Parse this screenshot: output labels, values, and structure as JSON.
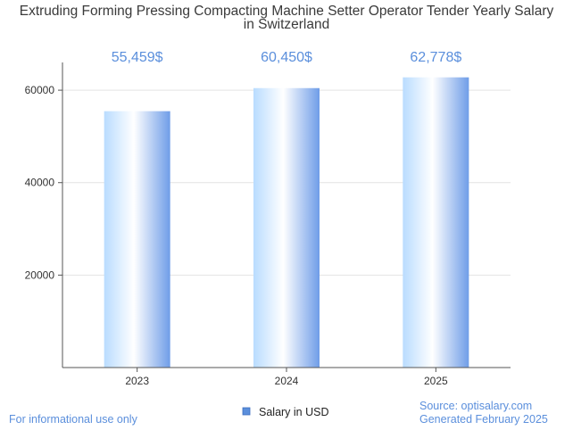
{
  "chart_data": {
    "type": "bar",
    "title_lines": [
      "Extruding Forming Pressing Compacting Machine Setter Operator Tender Yearly Salary",
      "in Switzerland"
    ],
    "categories": [
      "2023",
      "2024",
      "2025"
    ],
    "series": [
      {
        "name": "Salary in USD",
        "values": [
          55459,
          60450,
          62778
        ],
        "labels": [
          "55,459$",
          "60,450$",
          "62,778$"
        ]
      }
    ],
    "y_ticks": [
      "20000",
      "40000",
      "60000"
    ],
    "ylim": [
      0,
      66000
    ],
    "grid": true,
    "legend": "bottom-center",
    "colors": {
      "bar_dark": "#6f9de8",
      "bar_light": "#ffffff",
      "bar_pale": "#b9dcff",
      "label": "#5b8fdc"
    }
  },
  "footer": {
    "left": "For informational use only",
    "source": "Source: optisalary.com",
    "generated": "Generated February 2025"
  }
}
